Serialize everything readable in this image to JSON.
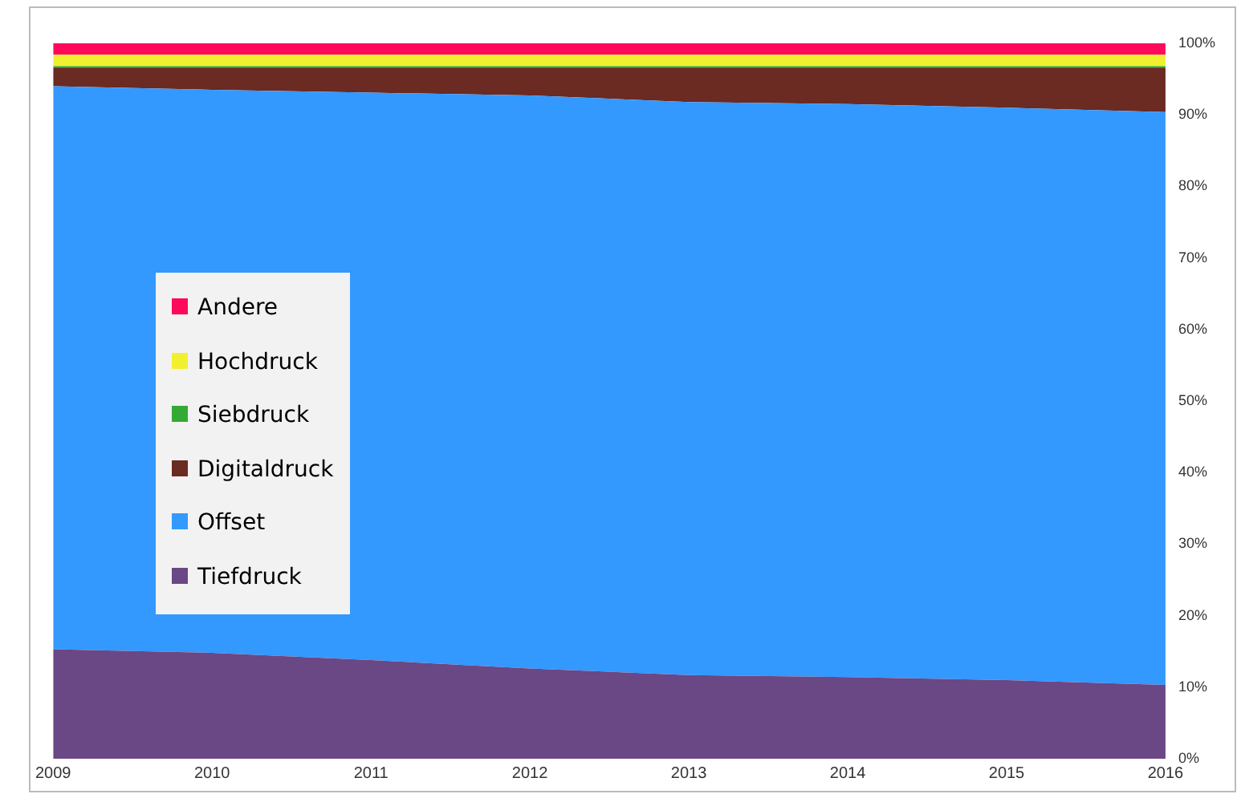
{
  "chart_data": {
    "type": "area",
    "stacked": true,
    "x": [
      2009,
      2010,
      2011,
      2012,
      2013,
      2014,
      2015,
      2016
    ],
    "xlim": [
      2009,
      2016
    ],
    "xticks": [
      2009,
      2010,
      2011,
      2012,
      2013,
      2014,
      2015,
      2016
    ],
    "ylim": [
      0,
      100
    ],
    "yticks": [
      {
        "value": 0,
        "label": "0%"
      },
      {
        "value": 10,
        "label": "10%"
      },
      {
        "value": 20,
        "label": "20%"
      },
      {
        "value": 30,
        "label": "30%"
      },
      {
        "value": 40,
        "label": "40%"
      },
      {
        "value": 50,
        "label": "50%"
      },
      {
        "value": 60,
        "label": "60%"
      },
      {
        "value": 70,
        "label": "70%"
      },
      {
        "value": 80,
        "label": "80%"
      },
      {
        "value": 90,
        "label": "90%"
      },
      {
        "value": 100,
        "label": "100%"
      }
    ],
    "grid": false,
    "legend": "left",
    "series": [
      {
        "name": "Tiefdruck",
        "color": "#6a4785",
        "values": [
          15.3,
          14.8,
          13.8,
          12.6,
          11.7,
          11.4,
          11.0,
          10.3
        ]
      },
      {
        "name": "Offset",
        "color": "#3399ff",
        "values": [
          78.7,
          78.7,
          79.3,
          80.1,
          80.1,
          80.1,
          80.0,
          80.1
        ]
      },
      {
        "name": "Digitaldruck",
        "color": "#6b2a22",
        "values": [
          2.6,
          3.1,
          3.5,
          3.9,
          4.8,
          5.1,
          5.6,
          6.2
        ]
      },
      {
        "name": "Siebdruck",
        "color": "#33aa33",
        "values": [
          0.2,
          0.2,
          0.2,
          0.2,
          0.2,
          0.2,
          0.2,
          0.2
        ]
      },
      {
        "name": "Hochdruck",
        "color": "#f0f030",
        "values": [
          1.6,
          1.6,
          1.6,
          1.6,
          1.6,
          1.6,
          1.6,
          1.6
        ]
      },
      {
        "name": "Andere",
        "color": "#ff0a5a",
        "values": [
          1.6,
          1.6,
          1.6,
          1.6,
          1.6,
          1.6,
          1.6,
          1.6
        ]
      }
    ]
  }
}
